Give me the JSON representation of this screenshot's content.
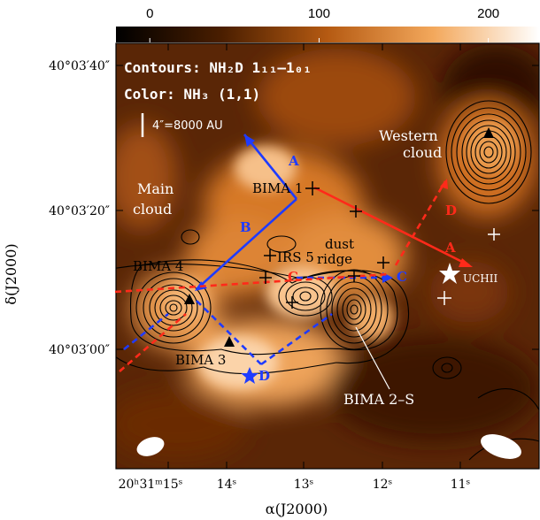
{
  "chart_data": {
    "type": "heatmap",
    "colorbar": {
      "ticks": [
        "0",
        "100",
        "200"
      ],
      "range": [
        -20,
        230
      ]
    },
    "legend_text": {
      "line1": "Contours: NH₂D 1₁₁–1₀₁",
      "line2": "Color: NH₃ (1,1)",
      "scale_bar": "4″=8000 AU"
    },
    "x_axis": {
      "label": "α(J2000)",
      "ticks": [
        "20ʰ31ᵐ15ˢ",
        "14ˢ",
        "13ˢ",
        "12ˢ",
        "11ˢ"
      ]
    },
    "y_axis": {
      "label": "δ(J2000)",
      "ticks": [
        "40°03′40″",
        "40°03′20″",
        "40°03′00″"
      ]
    },
    "regions": {
      "main_cloud": [
        "Main",
        "cloud"
      ],
      "western_cloud": [
        "Western",
        "cloud"
      ]
    },
    "sources": {
      "bima1": "BIMA 1",
      "bima2s": "BIMA 2–S",
      "bima3": "BIMA 3",
      "bima4": "BIMA 4",
      "irs5": "IRS 5",
      "dust_ridge": [
        "dust",
        "ridge"
      ],
      "uchii": "UCHII"
    },
    "cuts": {
      "blue_A": "A",
      "blue_B": "B",
      "blue_C": "C",
      "blue_D": "D",
      "red_A": "A",
      "red_C": "C",
      "red_D": "D"
    },
    "colors": {
      "blue_cut": "#1f3bff",
      "red_cut": "#ff2a1a"
    }
  }
}
